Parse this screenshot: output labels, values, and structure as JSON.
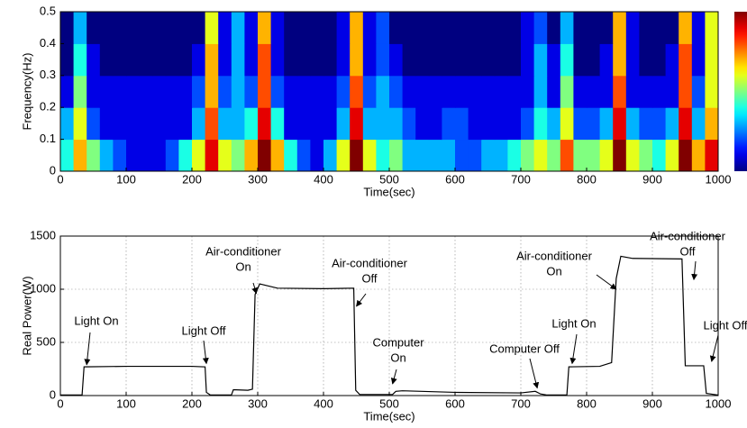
{
  "chart_data": [
    {
      "type": "heatmap",
      "xlabel": "Time(sec)",
      "ylabel": "Frequency(Hz)",
      "xlim": [
        0,
        1000
      ],
      "ylim": [
        0,
        0.5
      ],
      "zlim": [
        0,
        10
      ],
      "xticks": [
        0,
        100,
        200,
        300,
        400,
        500,
        600,
        700,
        800,
        900,
        1000
      ],
      "yticks": [
        0,
        0.1,
        0.2,
        0.3,
        0.4,
        0.5
      ],
      "x_edges": [
        0,
        20,
        40,
        60,
        80,
        100,
        120,
        140,
        160,
        180,
        200,
        220,
        240,
        260,
        280,
        300,
        320,
        340,
        360,
        380,
        400,
        420,
        440,
        460,
        480,
        500,
        520,
        540,
        560,
        580,
        600,
        620,
        640,
        660,
        680,
        700,
        720,
        740,
        760,
        780,
        800,
        820,
        840,
        860,
        880,
        900,
        920,
        940,
        960,
        980,
        1000
      ],
      "y_edges": [
        0,
        0.1,
        0.2,
        0.3,
        0.4,
        0.5
      ],
      "z": [
        [
          4,
          7,
          5,
          3,
          2,
          1,
          1,
          1,
          2,
          4,
          6,
          9,
          6,
          5,
          7,
          10,
          7,
          4,
          2,
          1,
          3,
          6,
          10,
          6,
          4,
          5,
          3,
          3,
          3,
          3,
          2,
          2,
          3,
          3,
          4,
          5,
          6,
          5,
          8,
          5,
          5,
          6,
          10,
          6,
          5,
          4,
          6,
          10,
          7,
          9
        ],
        [
          3,
          6,
          2,
          1,
          1,
          1,
          1,
          1,
          1,
          1,
          3,
          8,
          3,
          3,
          4,
          9,
          4,
          1,
          1,
          1,
          1,
          3,
          9,
          3,
          3,
          3,
          2,
          1,
          1,
          2,
          2,
          1,
          1,
          1,
          1,
          2,
          4,
          3,
          6,
          2,
          2,
          3,
          9,
          3,
          2,
          2,
          3,
          9,
          3,
          7
        ],
        [
          1,
          5,
          1,
          1,
          1,
          1,
          1,
          1,
          1,
          1,
          2,
          7,
          2,
          3,
          2,
          8,
          2,
          1,
          1,
          1,
          1,
          2,
          8,
          2,
          3,
          2,
          1,
          1,
          1,
          1,
          1,
          1,
          1,
          1,
          1,
          1,
          3,
          1,
          5,
          1,
          1,
          1,
          8,
          1,
          1,
          1,
          1,
          8,
          2,
          6
        ],
        [
          0,
          4,
          1,
          0,
          0,
          0,
          0,
          0,
          0,
          0,
          1,
          7,
          1,
          3,
          1,
          8,
          1,
          0,
          0,
          0,
          0,
          1,
          7,
          1,
          2,
          1,
          0,
          0,
          0,
          0,
          0,
          0,
          0,
          0,
          0,
          1,
          3,
          1,
          4,
          0,
          0,
          1,
          7,
          1,
          0,
          0,
          1,
          8,
          1,
          6
        ],
        [
          0,
          3,
          0,
          0,
          0,
          0,
          0,
          0,
          0,
          0,
          0,
          6,
          1,
          3,
          1,
          7,
          1,
          0,
          0,
          0,
          0,
          1,
          7,
          1,
          2,
          0,
          0,
          0,
          0,
          0,
          0,
          0,
          0,
          0,
          0,
          1,
          2,
          0,
          3,
          0,
          0,
          0,
          7,
          1,
          0,
          0,
          0,
          7,
          1,
          6
        ]
      ]
    },
    {
      "type": "line",
      "xlabel": "Time(sec)",
      "ylabel": "Real Power(W)",
      "grid": true,
      "xlim": [
        0,
        1000
      ],
      "ylim": [
        0,
        1500
      ],
      "xticks": [
        0,
        100,
        200,
        300,
        400,
        500,
        600,
        700,
        800,
        900,
        1000
      ],
      "yticks": [
        0,
        500,
        1000,
        1500
      ],
      "series": [
        {
          "color": "#000000",
          "x": [
            0,
            33,
            36,
            100,
            200,
            220,
            222,
            228,
            260,
            263,
            285,
            292,
            296,
            303,
            330,
            400,
            446,
            449,
            455,
            505,
            510,
            520,
            600,
            700,
            722,
            730,
            740,
            770,
            773,
            820,
            838,
            845,
            852,
            870,
            945,
            950,
            978,
            982,
            1000
          ],
          "values": [
            5,
            5,
            270,
            275,
            275,
            270,
            30,
            5,
            5,
            55,
            50,
            60,
            950,
            1050,
            1010,
            1005,
            1010,
            50,
            10,
            10,
            40,
            45,
            30,
            25,
            40,
            15,
            5,
            5,
            270,
            275,
            310,
            1100,
            1310,
            1290,
            1285,
            280,
            280,
            20,
            5
          ]
        }
      ],
      "annotations": [
        {
          "text": [
            "Light On"
          ],
          "x": 40,
          "y": 290
        },
        {
          "text": [
            "Light Off"
          ],
          "x": 222,
          "y": 300
        },
        {
          "text": [
            "Air-conditioner",
            "On"
          ],
          "x": 298,
          "y": 960
        },
        {
          "text": [
            "Air-conditioner",
            "Off"
          ],
          "x": 450,
          "y": 840
        },
        {
          "text": [
            "Computer",
            "On"
          ],
          "x": 505,
          "y": 110
        },
        {
          "text": [
            "Computer Off"
          ],
          "x": 725,
          "y": 70
        },
        {
          "text": [
            "Light On"
          ],
          "x": 778,
          "y": 300
        },
        {
          "text": [
            "Air-conditioner",
            "On"
          ],
          "x": 845,
          "y": 1000
        },
        {
          "text": [
            "Air-conditioner",
            "Off"
          ],
          "x": 963,
          "y": 1090
        },
        {
          "text": [
            "Light Off"
          ],
          "x": 990,
          "y": 320
        }
      ]
    }
  ]
}
